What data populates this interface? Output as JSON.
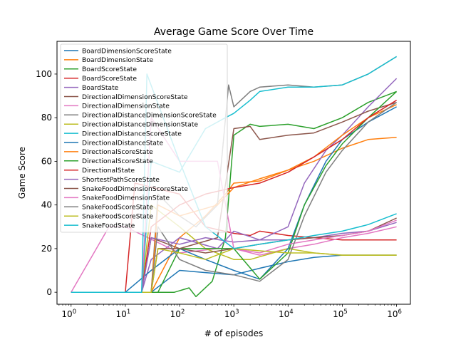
{
  "chart_data": {
    "type": "line",
    "title": "Average Game Score Over Time",
    "xlabel": "# of episodes",
    "ylabel": "Game Score",
    "xscale": "log",
    "xlim": [
      0.55,
      1800000
    ],
    "ylim": [
      -5.5,
      115
    ],
    "xticks": [
      {
        "v": 1,
        "base": "10",
        "exp": "0"
      },
      {
        "v": 10,
        "base": "10",
        "exp": "1"
      },
      {
        "v": 100,
        "base": "10",
        "exp": "2"
      },
      {
        "v": 1000,
        "base": "10",
        "exp": "3"
      },
      {
        "v": 10000,
        "base": "10",
        "exp": "4"
      },
      {
        "v": 100000,
        "base": "10",
        "exp": "5"
      },
      {
        "v": 1000000,
        "base": "10",
        "exp": "6"
      }
    ],
    "yticks": [
      0,
      20,
      40,
      60,
      80,
      100
    ],
    "grid": false,
    "legend_position": "top-left",
    "series": [
      {
        "name": "BoardDimensionScoreState",
        "color": "#1f77b4",
        "points": [
          [
            1,
            0
          ],
          [
            30,
            0
          ],
          [
            100,
            10
          ],
          [
            300,
            9
          ],
          [
            1000,
            8
          ],
          [
            3000,
            11
          ],
          [
            10000,
            14
          ],
          [
            30000,
            16
          ],
          [
            100000,
            17
          ],
          [
            300000,
            17
          ],
          [
            1000000,
            17
          ]
        ]
      },
      {
        "name": "BoardDimensionState",
        "color": "#ff7f0e",
        "points": [
          [
            1,
            0
          ],
          [
            30,
            0
          ],
          [
            100,
            25
          ],
          [
            300,
            35
          ],
          [
            700,
            45
          ],
          [
            1000,
            50
          ],
          [
            3000,
            51
          ],
          [
            10000,
            56
          ],
          [
            30000,
            60
          ],
          [
            100000,
            66
          ],
          [
            300000,
            70
          ],
          [
            1000000,
            71
          ]
        ]
      },
      {
        "name": "BoardScoreState",
        "color": "#2ca02c",
        "points": [
          [
            1,
            0
          ],
          [
            80,
            0
          ],
          [
            150,
            2
          ],
          [
            200,
            -2
          ],
          [
            400,
            5
          ],
          [
            700,
            25
          ],
          [
            1000,
            72
          ],
          [
            2000,
            77
          ],
          [
            3000,
            76
          ],
          [
            10000,
            77
          ],
          [
            30000,
            75
          ],
          [
            100000,
            80
          ],
          [
            300000,
            87
          ],
          [
            1000000,
            92
          ]
        ]
      },
      {
        "name": "BoardScoreState",
        "color": "#d62728",
        "points": [
          [
            1,
            0
          ],
          [
            10,
            0
          ],
          [
            15,
            50
          ],
          [
            100,
            45
          ],
          [
            300,
            30
          ],
          [
            1000,
            27
          ],
          [
            2000,
            26
          ],
          [
            3000,
            28
          ],
          [
            10000,
            26
          ],
          [
            30000,
            25
          ],
          [
            100000,
            24
          ],
          [
            300000,
            24
          ],
          [
            1000000,
            24
          ]
        ]
      },
      {
        "name": "BoardState",
        "color": "#9467bd",
        "points": [
          [
            1,
            0
          ],
          [
            20,
            0
          ],
          [
            30,
            15
          ],
          [
            100,
            25
          ],
          [
            500,
            20
          ],
          [
            1000,
            28
          ],
          [
            3000,
            24
          ],
          [
            10000,
            30
          ],
          [
            20000,
            50
          ],
          [
            50000,
            65
          ],
          [
            100000,
            72
          ],
          [
            300000,
            85
          ],
          [
            1000000,
            98
          ]
        ]
      },
      {
        "name": "DirectionalDimensionScoreState",
        "color": "#8c564b",
        "points": [
          [
            1,
            0
          ],
          [
            20,
            0
          ],
          [
            30,
            25
          ],
          [
            100,
            20
          ],
          [
            500,
            25
          ],
          [
            1000,
            75
          ],
          [
            2000,
            76
          ],
          [
            3000,
            70
          ],
          [
            10000,
            72
          ],
          [
            30000,
            73
          ],
          [
            100000,
            78
          ],
          [
            300000,
            83
          ],
          [
            1000000,
            87
          ]
        ]
      },
      {
        "name": "DirectionalDimensionState",
        "color": "#e377c2",
        "points": [
          [
            1,
            0
          ],
          [
            5,
            30
          ],
          [
            10,
            30
          ],
          [
            100,
            18
          ],
          [
            500,
            20
          ],
          [
            1000,
            20
          ],
          [
            3000,
            17
          ],
          [
            10000,
            20
          ],
          [
            30000,
            22
          ],
          [
            100000,
            25
          ],
          [
            300000,
            27
          ],
          [
            1000000,
            30
          ]
        ]
      },
      {
        "name": "DirectionalDistanceDimensionScoreState",
        "color": "#7f7f7f",
        "points": [
          [
            1,
            0
          ],
          [
            30,
            0
          ],
          [
            40,
            45
          ],
          [
            100,
            35
          ],
          [
            200,
            30
          ],
          [
            500,
            40
          ],
          [
            800,
            95
          ],
          [
            1000,
            85
          ],
          [
            2000,
            92
          ],
          [
            3000,
            94
          ],
          [
            10000,
            95
          ],
          [
            30000,
            94
          ],
          [
            100000,
            95
          ],
          [
            300000,
            100
          ],
          [
            1000000,
            108
          ]
        ]
      },
      {
        "name": "DirectionalDistanceDimensionState",
        "color": "#bcbd22",
        "points": [
          [
            1,
            0
          ],
          [
            20,
            0
          ],
          [
            30,
            40
          ],
          [
            100,
            30
          ],
          [
            300,
            20
          ],
          [
            1000,
            15
          ],
          [
            2000,
            15
          ],
          [
            10000,
            20
          ],
          [
            30000,
            18
          ],
          [
            100000,
            17
          ],
          [
            300000,
            17
          ],
          [
            1000000,
            17
          ]
        ]
      },
      {
        "name": "DirectionalDistanceScoreState",
        "color": "#17becf",
        "points": [
          [
            1,
            0
          ],
          [
            20,
            0
          ],
          [
            30,
            60
          ],
          [
            100,
            55
          ],
          [
            300,
            75
          ],
          [
            700,
            80
          ],
          [
            1000,
            82
          ],
          [
            2000,
            88
          ],
          [
            3000,
            92
          ],
          [
            10000,
            94
          ],
          [
            30000,
            94
          ],
          [
            100000,
            95
          ],
          [
            300000,
            100
          ],
          [
            1000000,
            108
          ]
        ]
      },
      {
        "name": "DirectionalDistanceState",
        "color": "#1f77b4",
        "points": [
          [
            1,
            0
          ],
          [
            10,
            0
          ],
          [
            30,
            10
          ],
          [
            100,
            20
          ],
          [
            300,
            15
          ],
          [
            1000,
            10
          ],
          [
            3000,
            6
          ],
          [
            10000,
            20
          ],
          [
            20000,
            40
          ],
          [
            50000,
            60
          ],
          [
            100000,
            70
          ],
          [
            300000,
            78
          ],
          [
            1000000,
            85
          ]
        ]
      },
      {
        "name": "DirectionalScoreState",
        "color": "#ff7f0e",
        "points": [
          [
            1,
            0
          ],
          [
            30,
            0
          ],
          [
            40,
            40
          ],
          [
            100,
            35
          ],
          [
            500,
            40
          ],
          [
            1000,
            48
          ],
          [
            3000,
            52
          ],
          [
            10000,
            56
          ],
          [
            30000,
            62
          ],
          [
            100000,
            72
          ],
          [
            300000,
            80
          ],
          [
            1000000,
            86
          ]
        ]
      },
      {
        "name": "DirectionalScoreState",
        "color": "#2ca02c",
        "points": [
          [
            1,
            0
          ],
          [
            40,
            0
          ],
          [
            100,
            20
          ],
          [
            300,
            20
          ],
          [
            1000,
            20
          ],
          [
            3000,
            6
          ],
          [
            10000,
            18
          ],
          [
            20000,
            40
          ],
          [
            50000,
            58
          ],
          [
            100000,
            68
          ],
          [
            300000,
            80
          ],
          [
            1000000,
            92
          ]
        ]
      },
      {
        "name": "DirectionalState",
        "color": "#d62728",
        "points": [
          [
            1,
            0
          ],
          [
            20,
            0
          ],
          [
            30,
            30
          ],
          [
            100,
            40
          ],
          [
            300,
            45
          ],
          [
            1000,
            48
          ],
          [
            3000,
            50
          ],
          [
            10000,
            55
          ],
          [
            30000,
            62
          ],
          [
            100000,
            70
          ],
          [
            300000,
            80
          ],
          [
            1000000,
            88
          ]
        ]
      },
      {
        "name": "ShortestPathScoreState",
        "color": "#9467bd",
        "points": [
          [
            1,
            0
          ],
          [
            20,
            0
          ],
          [
            30,
            25
          ],
          [
            100,
            22
          ],
          [
            300,
            25
          ],
          [
            1000,
            23
          ],
          [
            3000,
            24
          ],
          [
            10000,
            24
          ],
          [
            30000,
            25
          ],
          [
            100000,
            27
          ],
          [
            300000,
            28
          ],
          [
            1000000,
            32
          ]
        ]
      },
      {
        "name": "SnakeFoodDimensionScoreState",
        "color": "#8c564b",
        "points": [
          [
            1,
            0
          ],
          [
            30,
            0
          ],
          [
            40,
            20
          ],
          [
            100,
            20
          ],
          [
            300,
            18
          ],
          [
            1000,
            20
          ],
          [
            3000,
            22
          ],
          [
            10000,
            24
          ],
          [
            30000,
            25
          ],
          [
            100000,
            26
          ],
          [
            300000,
            28
          ],
          [
            1000000,
            34
          ]
        ]
      },
      {
        "name": "SnakeFoodDimensionState",
        "color": "#e377c2",
        "points": [
          [
            1,
            0
          ],
          [
            20,
            0
          ],
          [
            30,
            80
          ],
          [
            100,
            60
          ],
          [
            500,
            60
          ],
          [
            1000,
            20
          ],
          [
            3000,
            18
          ],
          [
            10000,
            22
          ],
          [
            30000,
            24
          ],
          [
            100000,
            26
          ],
          [
            300000,
            28
          ],
          [
            1000000,
            33
          ]
        ]
      },
      {
        "name": "SnakeFoodScoreState",
        "color": "#7f7f7f",
        "points": [
          [
            1,
            0
          ],
          [
            30,
            0
          ],
          [
            40,
            30
          ],
          [
            100,
            15
          ],
          [
            300,
            10
          ],
          [
            1000,
            8
          ],
          [
            3000,
            5
          ],
          [
            10000,
            15
          ],
          [
            20000,
            35
          ],
          [
            50000,
            55
          ],
          [
            100000,
            65
          ],
          [
            300000,
            78
          ],
          [
            1000000,
            87
          ]
        ]
      },
      {
        "name": "SnakeFoodScoreState",
        "color": "#bcbd22",
        "points": [
          [
            1,
            0
          ],
          [
            30,
            0
          ],
          [
            40,
            20
          ],
          [
            100,
            18
          ],
          [
            300,
            15
          ],
          [
            1000,
            20
          ],
          [
            3000,
            19
          ],
          [
            10000,
            18
          ],
          [
            30000,
            18
          ],
          [
            100000,
            17
          ],
          [
            300000,
            17
          ],
          [
            1000000,
            17
          ]
        ]
      },
      {
        "name": "SnakeFoodState",
        "color": "#17becf",
        "points": [
          [
            1,
            0
          ],
          [
            20,
            0
          ],
          [
            25,
            100
          ],
          [
            100,
            60
          ],
          [
            300,
            30
          ],
          [
            1000,
            20
          ],
          [
            3000,
            22
          ],
          [
            10000,
            24
          ],
          [
            30000,
            26
          ],
          [
            100000,
            28
          ],
          [
            300000,
            31
          ],
          [
            1000000,
            36
          ]
        ]
      }
    ]
  }
}
